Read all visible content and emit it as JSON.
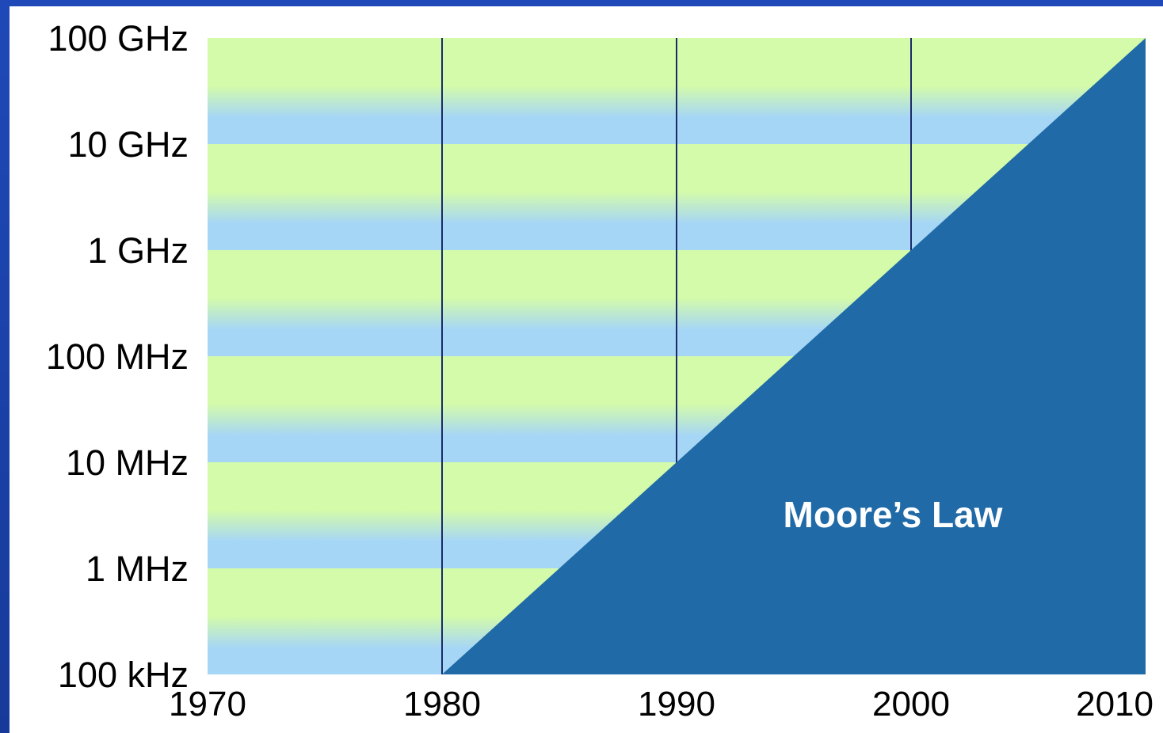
{
  "chart_data": {
    "type": "area",
    "title": "",
    "xlabel": "",
    "ylabel": "",
    "x_ticks": [
      "1970",
      "1980",
      "1990",
      "2000",
      "2010"
    ],
    "y_ticks": [
      "100 GHz",
      "10 GHz",
      "1 GHz",
      "100 MHz",
      "10 MHz",
      "1 MHz",
      "100 kHz"
    ],
    "xlim": [
      1970,
      2010
    ],
    "y_scale": "log",
    "ylim_hz": [
      100000,
      100000000000
    ],
    "grid": "vertical lines at decades",
    "series": [
      {
        "name": "Moore's Law",
        "x": [
          1980,
          1990,
          2000,
          2010
        ],
        "y_hz": [
          100000,
          10000000,
          1000000000,
          100000000000
        ]
      }
    ],
    "annotation": "Moore’s Law",
    "colors": {
      "band_green": "#d4fbaa",
      "band_blue": "#a6d6f6",
      "area": "#1f6aa7",
      "gridline": "#1b2a6b",
      "frame": "#1a3e9c"
    }
  }
}
